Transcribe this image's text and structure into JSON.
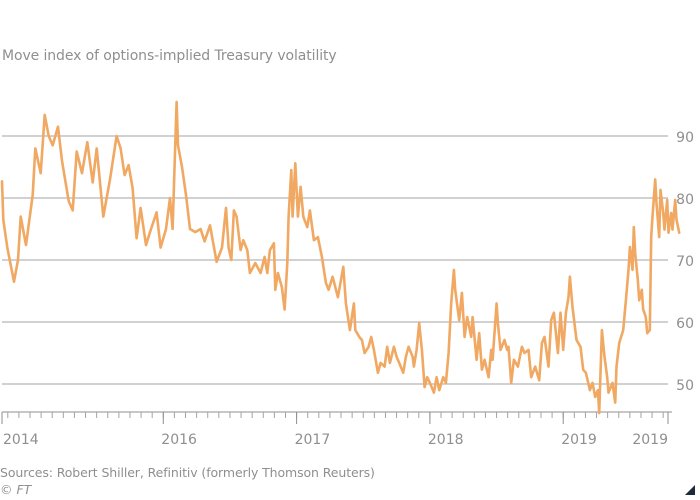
{
  "chart_data": {
    "type": "line",
    "title": "",
    "subtitle": "Move index of options-implied Treasury volatility",
    "xlabel": "",
    "ylabel": "",
    "ylim": [
      45,
      97
    ],
    "xlim": [
      2013.79,
      2018.85
    ],
    "y_ticks": [
      50,
      60,
      70,
      80,
      90
    ],
    "x_tick_labels": [
      {
        "x": 2013.79,
        "label": "2014"
      },
      {
        "x": 2015.0,
        "label": "2016"
      },
      {
        "x": 2016.0,
        "label": "2017"
      },
      {
        "x": 2017.0,
        "label": "2018"
      },
      {
        "x": 2018.0,
        "label": "2019"
      },
      {
        "x": 2018.85,
        "label": "2019"
      }
    ],
    "grid": true,
    "legend": "none",
    "series": [
      {
        "name": "MOVE index",
        "color": "#f0a862",
        "points": [
          [
            2013.79,
            82.7
          ],
          [
            2013.8,
            76.5
          ],
          [
            2013.83,
            72.0
          ],
          [
            2013.88,
            66.5
          ],
          [
            2013.91,
            70.0
          ],
          [
            2013.93,
            77.0
          ],
          [
            2013.97,
            72.4
          ],
          [
            2014.02,
            80.5
          ],
          [
            2014.04,
            88.0
          ],
          [
            2014.08,
            84.0
          ],
          [
            2014.11,
            93.4
          ],
          [
            2014.14,
            90.0
          ],
          [
            2014.17,
            88.5
          ],
          [
            2014.21,
            91.5
          ],
          [
            2014.24,
            86.0
          ],
          [
            2014.29,
            79.5
          ],
          [
            2014.32,
            78.0
          ],
          [
            2014.35,
            87.5
          ],
          [
            2014.39,
            84.0
          ],
          [
            2014.43,
            89.0
          ],
          [
            2014.47,
            82.5
          ],
          [
            2014.5,
            88.0
          ],
          [
            2014.55,
            77.0
          ],
          [
            2014.6,
            83.0
          ],
          [
            2014.65,
            90.0
          ],
          [
            2014.68,
            88.0
          ],
          [
            2014.71,
            83.7
          ],
          [
            2014.74,
            85.3
          ],
          [
            2014.77,
            81.6
          ],
          [
            2014.8,
            73.5
          ],
          [
            2014.83,
            78.4
          ],
          [
            2014.87,
            72.4
          ],
          [
            2014.9,
            74.5
          ],
          [
            2014.95,
            77.7
          ],
          [
            2014.98,
            72.0
          ],
          [
            2015.02,
            75.0
          ],
          [
            2015.05,
            80.0
          ],
          [
            2015.07,
            75.0
          ],
          [
            2015.1,
            95.5
          ],
          [
            2015.11,
            88.5
          ],
          [
            2015.14,
            85.0
          ],
          [
            2015.17,
            80.5
          ],
          [
            2015.2,
            75.0
          ],
          [
            2015.24,
            74.5
          ],
          [
            2015.28,
            75.0
          ],
          [
            2015.31,
            73.0
          ],
          [
            2015.35,
            75.6
          ],
          [
            2015.4,
            69.7
          ],
          [
            2015.44,
            72.0
          ],
          [
            2015.47,
            78.4
          ],
          [
            2015.49,
            72.0
          ],
          [
            2015.51,
            70.0
          ],
          [
            2015.53,
            78.0
          ],
          [
            2015.55,
            77.0
          ],
          [
            2015.58,
            71.6
          ],
          [
            2015.6,
            73.2
          ],
          [
            2015.63,
            71.6
          ],
          [
            2015.65,
            67.9
          ],
          [
            2015.69,
            69.5
          ],
          [
            2015.73,
            67.9
          ],
          [
            2015.76,
            70.5
          ],
          [
            2015.78,
            67.9
          ],
          [
            2015.8,
            71.6
          ],
          [
            2015.83,
            72.7
          ],
          [
            2015.84,
            65.2
          ],
          [
            2015.86,
            67.9
          ],
          [
            2015.89,
            65.6
          ],
          [
            2015.91,
            62.0
          ],
          [
            2015.93,
            69.5
          ],
          [
            2015.94,
            77.0
          ],
          [
            2015.96,
            84.5
          ],
          [
            2015.97,
            77.0
          ],
          [
            2015.99,
            85.6
          ],
          [
            2016.01,
            77.0
          ],
          [
            2016.03,
            81.8
          ],
          [
            2016.05,
            77.0
          ],
          [
            2016.08,
            75.3
          ],
          [
            2016.1,
            78.0
          ],
          [
            2016.13,
            73.2
          ],
          [
            2016.16,
            73.7
          ],
          [
            2016.19,
            70.5
          ],
          [
            2016.22,
            66.3
          ],
          [
            2016.24,
            65.2
          ],
          [
            2016.27,
            67.3
          ],
          [
            2016.31,
            64.0
          ],
          [
            2016.35,
            68.9
          ],
          [
            2016.37,
            63.0
          ],
          [
            2016.4,
            58.7
          ],
          [
            2016.43,
            63.0
          ],
          [
            2016.44,
            58.7
          ],
          [
            2016.47,
            57.6
          ],
          [
            2016.49,
            57.1
          ],
          [
            2016.51,
            55.0
          ],
          [
            2016.54,
            56.0
          ],
          [
            2016.56,
            57.6
          ],
          [
            2016.58,
            55.5
          ],
          [
            2016.61,
            51.8
          ],
          [
            2016.63,
            53.4
          ],
          [
            2016.66,
            52.8
          ],
          [
            2016.68,
            56.0
          ],
          [
            2016.7,
            53.4
          ],
          [
            2016.73,
            56.0
          ],
          [
            2016.75,
            54.4
          ],
          [
            2016.77,
            53.4
          ],
          [
            2016.8,
            51.8
          ],
          [
            2016.82,
            54.4
          ],
          [
            2016.84,
            56.0
          ],
          [
            2016.87,
            54.4
          ],
          [
            2016.88,
            52.8
          ],
          [
            2016.9,
            55.5
          ],
          [
            2016.92,
            59.8
          ],
          [
            2016.94,
            55.5
          ],
          [
            2016.96,
            49.5
          ],
          [
            2016.98,
            51.1
          ],
          [
            2017.0,
            50.2
          ],
          [
            2017.03,
            48.6
          ],
          [
            2017.05,
            51.1
          ],
          [
            2017.07,
            49.0
          ],
          [
            2017.1,
            51.1
          ],
          [
            2017.12,
            50.2
          ],
          [
            2017.14,
            55.0
          ],
          [
            2017.16,
            63.0
          ],
          [
            2017.18,
            68.4
          ],
          [
            2017.19,
            65.2
          ],
          [
            2017.22,
            60.3
          ],
          [
            2017.24,
            64.7
          ],
          [
            2017.26,
            57.6
          ],
          [
            2017.28,
            60.8
          ],
          [
            2017.31,
            57.6
          ],
          [
            2017.32,
            60.8
          ],
          [
            2017.35,
            53.9
          ],
          [
            2017.37,
            58.2
          ],
          [
            2017.39,
            52.3
          ],
          [
            2017.41,
            53.9
          ],
          [
            2017.44,
            51.1
          ],
          [
            2017.46,
            55.5
          ],
          [
            2017.47,
            53.9
          ],
          [
            2017.5,
            63.0
          ],
          [
            2017.51,
            59.8
          ],
          [
            2017.53,
            55.5
          ],
          [
            2017.56,
            57.1
          ],
          [
            2017.58,
            55.5
          ],
          [
            2017.59,
            56.0
          ],
          [
            2017.61,
            50.2
          ],
          [
            2017.63,
            53.9
          ],
          [
            2017.66,
            52.8
          ],
          [
            2017.69,
            56.0
          ],
          [
            2017.71,
            55.0
          ],
          [
            2017.74,
            55.5
          ],
          [
            2017.76,
            51.1
          ],
          [
            2017.79,
            52.8
          ],
          [
            2017.82,
            50.6
          ],
          [
            2017.84,
            56.6
          ],
          [
            2017.86,
            57.6
          ],
          [
            2017.89,
            52.8
          ],
          [
            2017.91,
            60.3
          ],
          [
            2017.93,
            61.5
          ],
          [
            2017.96,
            55.0
          ],
          [
            2017.98,
            61.5
          ],
          [
            2018.0,
            55.5
          ],
          [
            2018.02,
            61.5
          ],
          [
            2018.04,
            64.0
          ],
          [
            2018.05,
            67.3
          ],
          [
            2018.07,
            62.4
          ],
          [
            2018.1,
            57.1
          ],
          [
            2018.13,
            56.0
          ],
          [
            2018.15,
            52.3
          ],
          [
            2018.17,
            51.8
          ],
          [
            2018.2,
            49.0
          ],
          [
            2018.22,
            50.2
          ],
          [
            2018.24,
            47.9
          ],
          [
            2018.26,
            49.0
          ],
          [
            2018.27,
            45.3
          ],
          [
            2018.29,
            58.7
          ],
          [
            2018.31,
            54.4
          ],
          [
            2018.33,
            51.1
          ],
          [
            2018.34,
            48.6
          ],
          [
            2018.37,
            50.2
          ],
          [
            2018.39,
            47.0
          ],
          [
            2018.4,
            52.8
          ],
          [
            2018.42,
            56.6
          ],
          [
            2018.45,
            58.7
          ],
          [
            2018.47,
            63.5
          ],
          [
            2018.49,
            68.4
          ],
          [
            2018.5,
            72.1
          ],
          [
            2018.52,
            68.4
          ],
          [
            2018.53,
            75.3
          ],
          [
            2018.54,
            71.1
          ],
          [
            2018.56,
            66.8
          ],
          [
            2018.57,
            63.5
          ],
          [
            2018.59,
            65.2
          ],
          [
            2018.6,
            62.0
          ],
          [
            2018.62,
            60.8
          ],
          [
            2018.63,
            58.2
          ],
          [
            2018.65,
            58.7
          ],
          [
            2018.66,
            73.7
          ],
          [
            2018.67,
            77.0
          ],
          [
            2018.69,
            83.0
          ],
          [
            2018.7,
            79.2
          ],
          [
            2018.72,
            73.7
          ],
          [
            2018.73,
            81.3
          ],
          [
            2018.75,
            77.6
          ],
          [
            2018.76,
            74.9
          ],
          [
            2018.78,
            79.7
          ],
          [
            2018.79,
            74.4
          ],
          [
            2018.81,
            77.6
          ],
          [
            2018.82,
            74.9
          ],
          [
            2018.84,
            79.7
          ],
          [
            2018.85,
            76.5
          ],
          [
            2018.87,
            74.4
          ]
        ]
      }
    ]
  },
  "footer": {
    "source": "Sources: Robert Shiller, Refinitiv (formerly Thomson Reuters)",
    "copyright": "© FT"
  }
}
